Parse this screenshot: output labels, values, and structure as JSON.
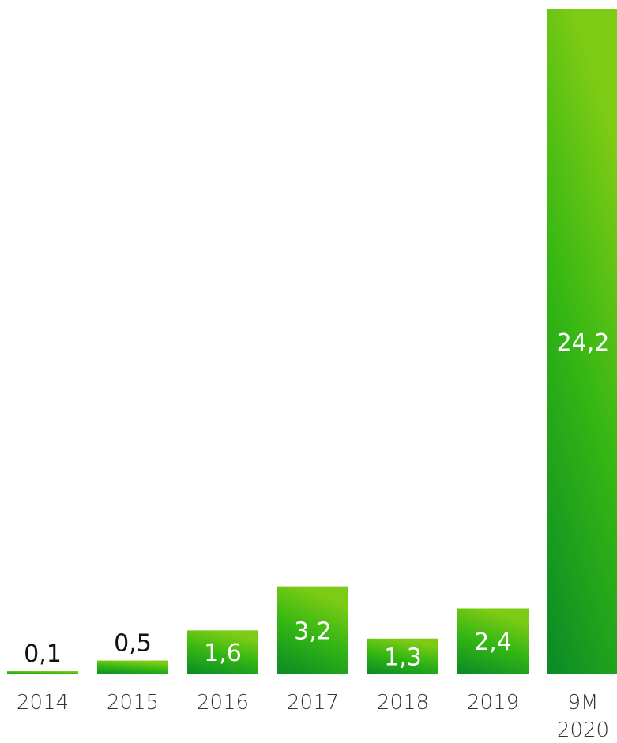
{
  "chart_data": {
    "type": "bar",
    "categories": [
      "2014",
      "2015",
      "2016",
      "2017",
      "2018",
      "2019",
      "9M\n2020"
    ],
    "values": [
      0.1,
      0.5,
      1.6,
      3.2,
      1.3,
      2.4,
      24.2
    ],
    "value_labels": [
      "0,1",
      "0,5",
      "1,6",
      "3,2",
      "1,3",
      "2,4",
      "24,2"
    ],
    "title": "",
    "xlabel": "",
    "ylabel": "",
    "ylim": [
      0,
      24.2
    ],
    "grid": false,
    "legend": "none",
    "colors": {
      "bar_top": "#7ccb14",
      "bar_mid": "#34b614",
      "bar_bottom": "#098a26",
      "label_inside": "#ffffff",
      "label_outside": "#111111",
      "axis_text": "#333333"
    }
  }
}
